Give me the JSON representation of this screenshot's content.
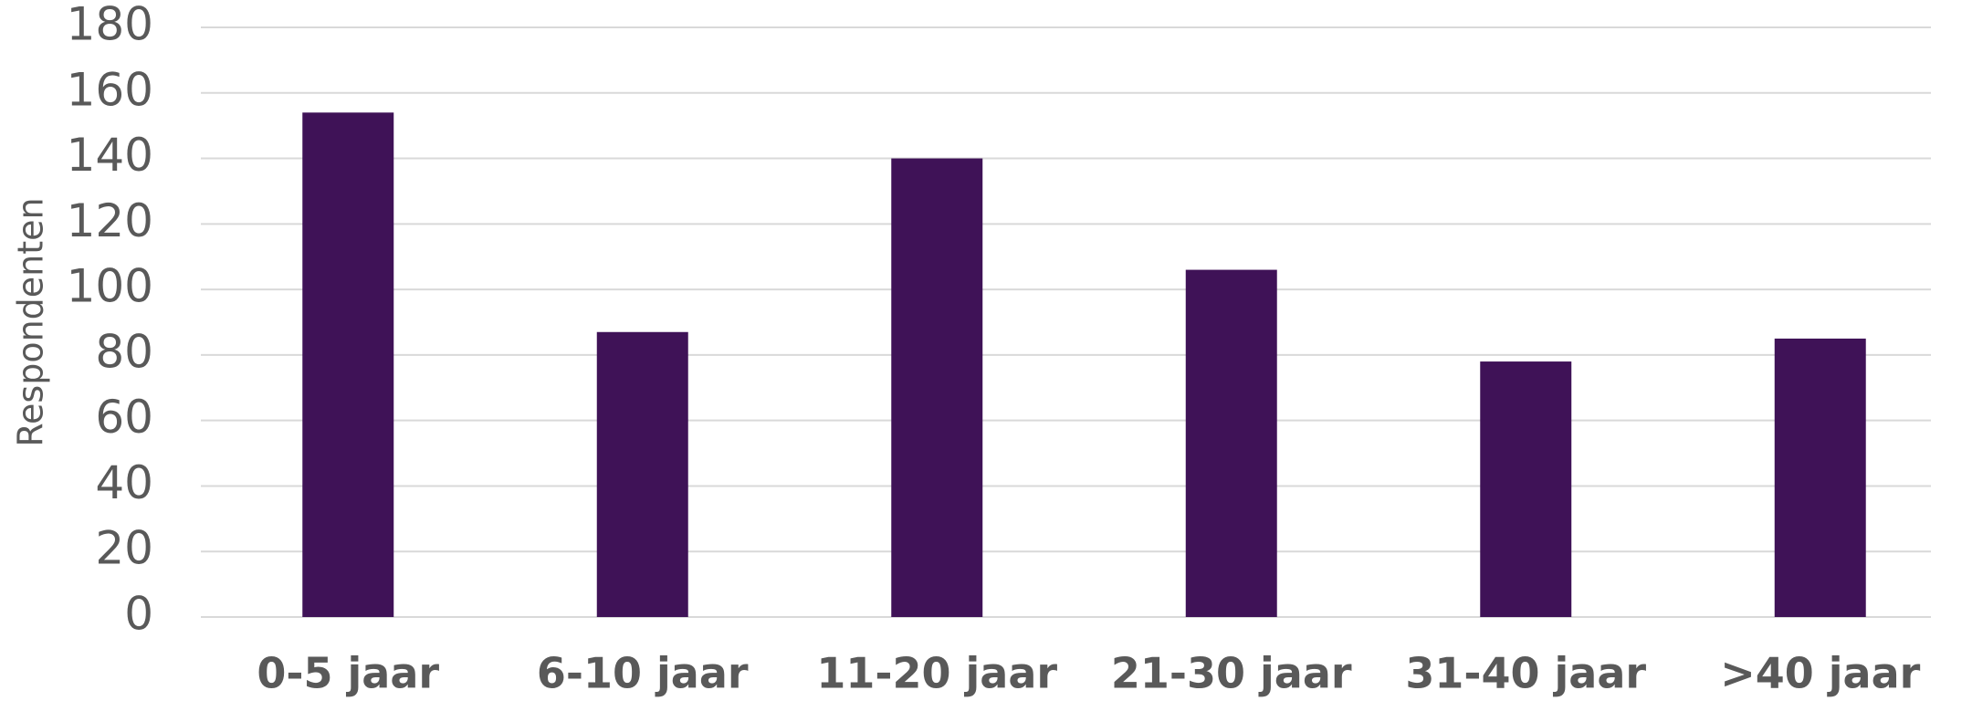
{
  "chart_data": {
    "type": "bar",
    "y_label": "Respondenten",
    "categories": [
      "0-5 jaar",
      "6-10 jaar",
      "11-20 jaar",
      "21-30 jaar",
      "31-40 jaar",
      ">40 jaar"
    ],
    "values": [
      154,
      87,
      140,
      106,
      78,
      85
    ],
    "color": "#3f1257",
    "ylim": [
      0,
      180
    ],
    "yticks": [
      0,
      20,
      40,
      60,
      80,
      100,
      120,
      140,
      160,
      180
    ],
    "grid": true
  }
}
